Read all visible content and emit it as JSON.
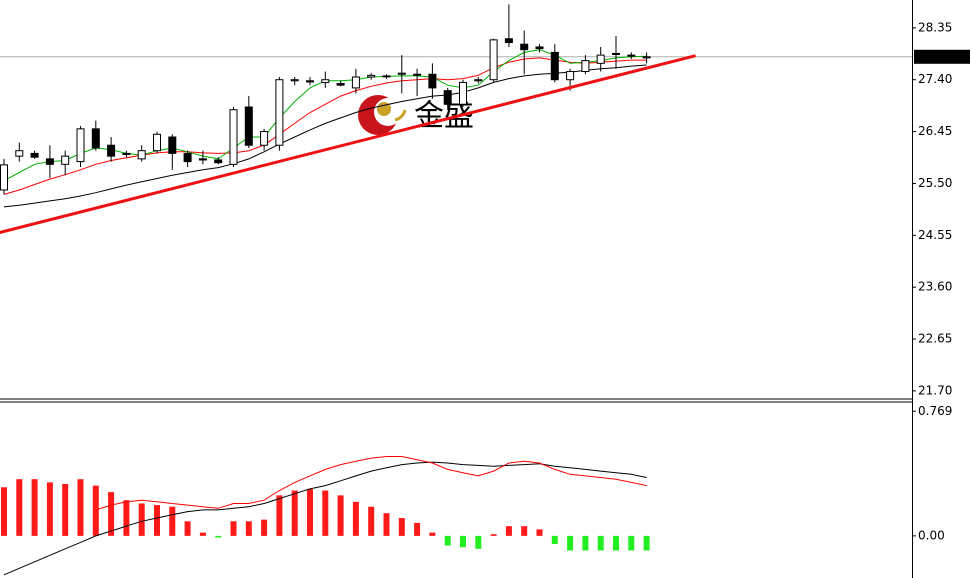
{
  "chart_data": [
    {
      "type": "candlestick",
      "open": [
        25.38,
        26.0,
        26.05,
        25.95,
        25.85,
        25.9,
        26.5,
        26.2,
        26.05,
        25.95,
        26.1,
        26.35,
        26.05,
        25.95,
        25.93,
        25.85,
        26.9,
        26.2,
        26.2,
        27.38,
        27.38,
        27.35,
        27.33,
        27.25,
        27.45,
        27.47,
        27.5,
        27.5,
        27.5,
        27.2,
        26.95,
        27.38,
        27.4,
        28.15,
        28.05,
        28.0,
        27.9,
        27.4,
        27.55,
        27.7,
        27.87,
        27.85,
        27.8
      ],
      "high": [
        25.95,
        26.25,
        26.1,
        26.2,
        26.1,
        26.55,
        26.65,
        26.35,
        26.1,
        26.2,
        26.45,
        26.4,
        26.1,
        26.1,
        25.98,
        26.9,
        27.1,
        26.5,
        27.45,
        27.45,
        27.45,
        27.55,
        27.38,
        27.6,
        27.52,
        27.5,
        27.85,
        27.6,
        27.7,
        27.25,
        27.4,
        27.45,
        28.15,
        28.78,
        28.3,
        28.05,
        28.05,
        27.6,
        27.85,
        28.0,
        28.2,
        27.9,
        27.9
      ],
      "low": [
        25.3,
        25.9,
        25.95,
        25.6,
        25.65,
        25.8,
        26.1,
        25.9,
        25.98,
        25.9,
        26.05,
        25.75,
        25.8,
        25.85,
        25.85,
        25.8,
        26.15,
        26.1,
        26.1,
        27.3,
        27.3,
        27.25,
        27.28,
        27.15,
        27.4,
        27.42,
        27.15,
        27.1,
        27.05,
        26.85,
        26.9,
        27.33,
        27.35,
        28.0,
        27.5,
        27.9,
        27.35,
        27.2,
        27.5,
        27.55,
        27.6,
        27.78,
        27.7
      ],
      "close": [
        25.84,
        26.1,
        25.98,
        25.85,
        26.0,
        26.5,
        26.15,
        26.0,
        26.05,
        26.1,
        26.4,
        26.05,
        25.9,
        25.93,
        25.88,
        26.85,
        26.2,
        26.45,
        27.4,
        27.4,
        27.36,
        27.4,
        27.3,
        27.45,
        27.48,
        27.47,
        27.52,
        27.5,
        27.25,
        26.95,
        27.35,
        27.4,
        28.13,
        28.08,
        27.95,
        27.97,
        27.4,
        27.55,
        27.75,
        27.85,
        27.88,
        27.84,
        27.82
      ],
      "lines": [
        {
          "color": "#000000",
          "values": [
            25.07,
            25.1,
            25.14,
            25.18,
            25.22,
            25.27,
            25.33,
            25.4,
            25.47,
            25.53,
            25.59,
            25.65,
            25.7,
            25.75,
            25.79,
            25.86,
            25.95,
            26.08,
            26.22,
            26.35,
            26.48,
            26.6,
            26.7,
            26.8,
            26.88,
            26.94,
            27.0,
            27.05,
            27.1,
            27.12,
            27.17,
            27.25,
            27.35,
            27.42,
            27.47,
            27.5,
            27.52,
            27.54,
            27.57,
            27.6,
            27.62,
            27.65,
            27.67
          ]
        },
        {
          "color": "#ff0000",
          "values": [
            25.3,
            25.38,
            25.48,
            25.58,
            25.66,
            25.75,
            25.85,
            25.92,
            25.97,
            26.02,
            26.06,
            26.08,
            26.08,
            26.06,
            26.05,
            26.06,
            26.1,
            26.2,
            26.4,
            26.6,
            26.8,
            26.95,
            27.1,
            27.2,
            27.28,
            27.34,
            27.38,
            27.4,
            27.42,
            27.4,
            27.42,
            27.48,
            27.62,
            27.72,
            27.78,
            27.8,
            27.76,
            27.72,
            27.7,
            27.72,
            27.74,
            27.76,
            27.76
          ]
        },
        {
          "color": "#00b000",
          "values": [
            25.55,
            25.7,
            25.85,
            25.9,
            25.92,
            26.05,
            26.15,
            26.12,
            26.05,
            26.02,
            26.1,
            26.15,
            26.08,
            26.0,
            25.95,
            26.15,
            26.35,
            26.35,
            26.7,
            27.0,
            27.25,
            27.38,
            27.38,
            27.4,
            27.45,
            27.46,
            27.47,
            27.47,
            27.45,
            27.3,
            27.25,
            27.3,
            27.55,
            27.75,
            27.9,
            27.95,
            27.85,
            27.7,
            27.72,
            27.75,
            27.8,
            27.82,
            27.83
          ]
        }
      ],
      "trendline": {
        "color": "#ee1111",
        "x": [
          -0.3,
          45.2
        ],
        "values": [
          24.6,
          27.84
        ]
      },
      "last_price": 27.82,
      "watermark": "金盛",
      "ylim": [
        21.57,
        28.86
      ],
      "yticks": [
        28.35,
        {
          "value": 27.4,
          "label": "27.40"
        },
        26.45,
        {
          "value": 25.5,
          "label": "25.50"
        },
        24.55,
        {
          "value": 23.6,
          "label": "23.60"
        },
        22.65,
        {
          "value": 21.7,
          "label": "21.70"
        }
      ]
    },
    {
      "type": "macd",
      "values": [
        0.3,
        0.35,
        0.35,
        0.33,
        0.32,
        0.35,
        0.31,
        0.27,
        0.22,
        0.2,
        0.19,
        0.18,
        0.09,
        0.02,
        -0.01,
        0.09,
        0.09,
        0.1,
        0.25,
        0.28,
        0.29,
        0.28,
        0.25,
        0.21,
        0.18,
        0.14,
        0.11,
        0.08,
        0.02,
        -0.06,
        -0.07,
        -0.08,
        0.01,
        0.06,
        0.06,
        0.04,
        -0.05,
        -0.09,
        -0.09,
        -0.09,
        -0.09,
        -0.09,
        -0.09
      ],
      "color_positive": "#ff1a1a",
      "color_negative": "#22ee22",
      "lines": [
        {
          "color": "#000000",
          "values": [
            -0.24,
            -0.2,
            -0.16,
            -0.12,
            -0.08,
            -0.04,
            0.0,
            0.03,
            0.06,
            0.09,
            0.11,
            0.13,
            0.15,
            0.16,
            0.16,
            0.17,
            0.18,
            0.2,
            0.23,
            0.26,
            0.29,
            0.31,
            0.34,
            0.37,
            0.4,
            0.42,
            0.44,
            0.45,
            0.455,
            0.45,
            0.44,
            0.435,
            0.43,
            0.435,
            0.44,
            0.445,
            0.43,
            0.42,
            0.41,
            0.4,
            0.39,
            0.38,
            0.36
          ]
        },
        {
          "color": "#ff0000",
          "values": [
            null,
            null,
            null,
            null,
            null,
            null,
            0.16,
            0.19,
            0.21,
            0.22,
            0.21,
            0.2,
            0.19,
            0.18,
            0.17,
            0.2,
            0.2,
            0.22,
            0.28,
            0.33,
            0.37,
            0.41,
            0.44,
            0.46,
            0.48,
            0.49,
            0.49,
            0.47,
            0.45,
            0.41,
            0.39,
            0.37,
            0.4,
            0.45,
            0.46,
            0.45,
            0.41,
            0.38,
            0.37,
            0.36,
            0.35,
            0.33,
            0.31
          ]
        }
      ],
      "ylim": [
        -0.26,
        0.82
      ],
      "yticks": [
        0.769,
        {
          "value": 0,
          "label": "0.00"
        }
      ]
    }
  ]
}
